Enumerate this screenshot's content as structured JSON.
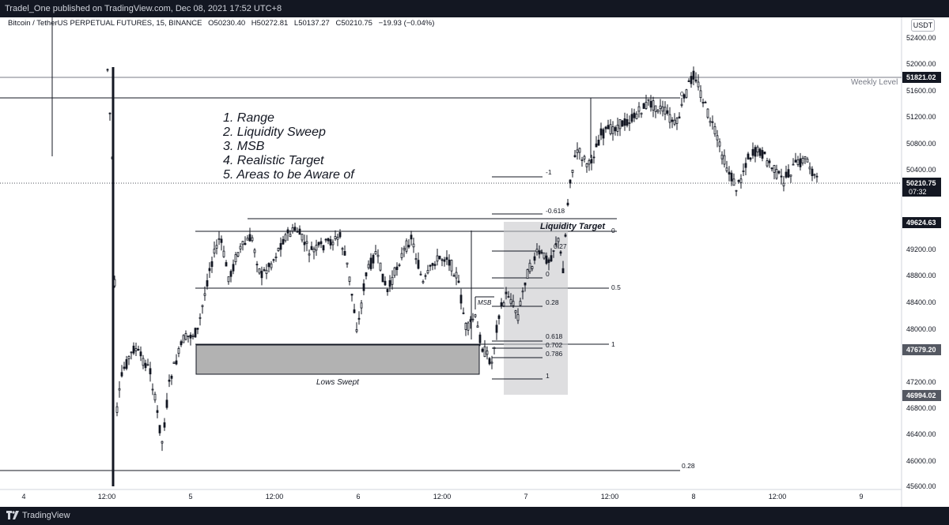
{
  "header": {
    "publish_line": "Tradel_One published on TradingView.com, Dec 08, 2021 17:52 UTC+8"
  },
  "ohlc": {
    "symbol": "Bitcoin / TetherUS PERPETUAL FUTURES, 15, BINANCE",
    "open": "O50230.40",
    "high": "H50272.81",
    "low": "L50137.27",
    "close": "C50210.75",
    "change": "−19.93 (−0.04%)"
  },
  "currency_button": "USDT",
  "price_axis": {
    "ticks": [
      "52400.00",
      "52000.00",
      "51600.00",
      "51200.00",
      "50800.00",
      "50400.00",
      "49200.00",
      "48800.00",
      "48400.00",
      "48000.00",
      "47200.00",
      "46800.00",
      "46400.00",
      "46000.00",
      "45600.00"
    ],
    "tags": [
      {
        "text": "51821.02",
        "color": "#131722"
      },
      {
        "text": "50210.75",
        "sub": "07:32",
        "color": "#131722"
      },
      {
        "text": "49624.63",
        "color": "#131722"
      },
      {
        "text": "47679.20",
        "color": "#545862"
      },
      {
        "text": "46994.02",
        "color": "#545862"
      }
    ]
  },
  "time_axis": [
    "4",
    "12:00",
    "5",
    "12:00",
    "6",
    "12:00",
    "7",
    "12:00",
    "8",
    "12:00",
    "9"
  ],
  "annotations": {
    "list": [
      "1. Range",
      "2. Liquidity Sweep",
      "3. MSB",
      "4. Realistic Target",
      "5. Areas to be Aware of"
    ],
    "weekly_level": "Weekly Level",
    "liquidity_target": "Liquidity Target",
    "lows_swept": "Lows Swept",
    "msb": "MSB",
    "fib_left": [
      "-1",
      "-0.618",
      "0",
      "0.27",
      "0",
      "0.28",
      "0.618",
      "0.702",
      "0.786",
      "1"
    ],
    "fib_right": [
      "0",
      "0.5",
      "1",
      "0.28",
      "0"
    ]
  },
  "footer": {
    "brand": "TradingView"
  },
  "colors": {
    "bg": "#ffffff",
    "dark": "#131722",
    "candle": "#131722",
    "zone": "#a9a9a9"
  }
}
